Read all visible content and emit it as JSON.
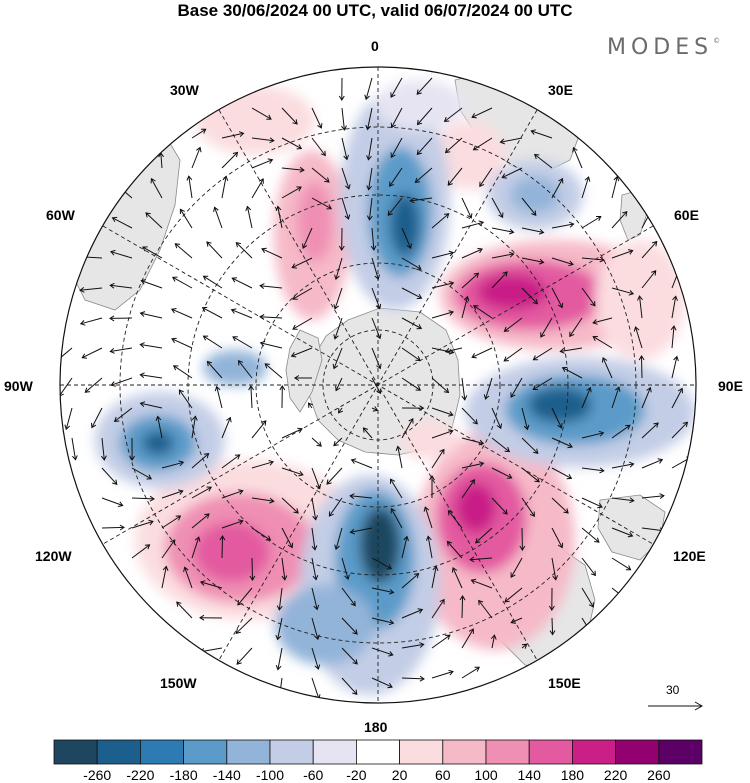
{
  "title": "Base 30/06/2024 00 UTC, valid 06/07/2024 00 UTC",
  "brand": "MODES",
  "brand_mark": "©",
  "longitude_labels": {
    "n0": "0",
    "n30e": "30E",
    "n60e": "60E",
    "n90e": "90E",
    "n120e": "120E",
    "n150e": "150E",
    "n180": "180",
    "n150w": "150W",
    "n120w": "120W",
    "n90w": "90W",
    "n60w": "60W",
    "n30w": "30W"
  },
  "reference_vector": {
    "label": "30"
  },
  "colorbar": {
    "labels": [
      "-260",
      "-220",
      "-180",
      "-140",
      "-100",
      "-60",
      "-20",
      "20",
      "60",
      "100",
      "140",
      "180",
      "220",
      "260"
    ],
    "colors": [
      "#1e4660",
      "#1d5f8c",
      "#2e7bb4",
      "#5b9bc9",
      "#93b4d9",
      "#c3cde6",
      "#e6e4f2",
      "#ffffff",
      "#fbdde0",
      "#f6b9c8",
      "#ef8fb3",
      "#e35aa0",
      "#c91f87",
      "#93006f",
      "#5c0068"
    ]
  },
  "colors": {
    "land": "#e6e6e6",
    "coast": "#8a8a8a"
  }
}
